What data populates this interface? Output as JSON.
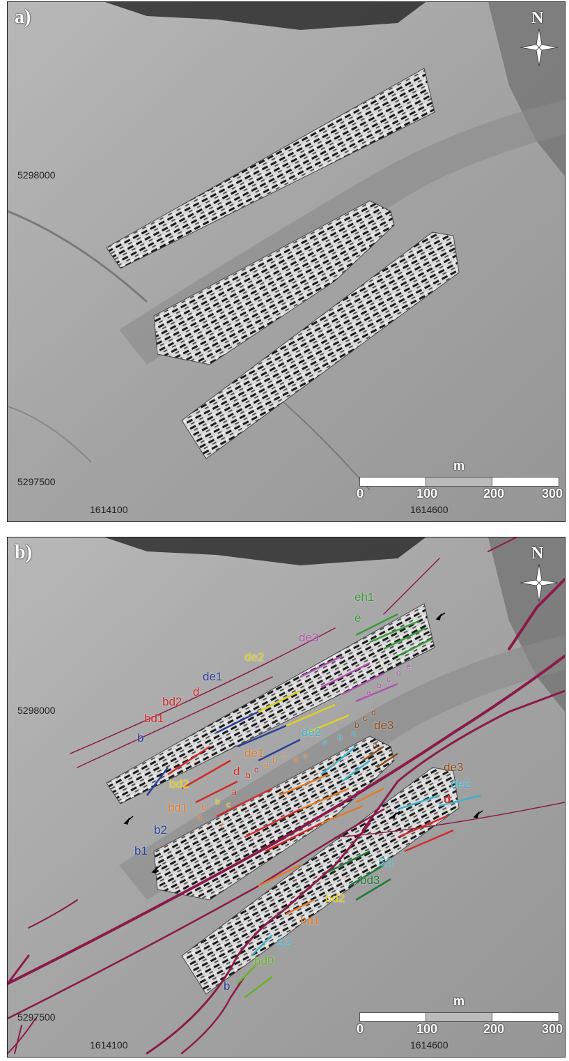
{
  "panels": {
    "a": {
      "label": "a)",
      "north_label": "N",
      "scale": {
        "unit": "m",
        "ticks": [
          "0",
          "100",
          "200",
          "300"
        ]
      },
      "coords": {
        "y_top": "5298000",
        "y_bottom": "5297500",
        "x_left": "1614100",
        "x_right": "1614600"
      }
    },
    "b": {
      "label": "b)",
      "north_label": "N",
      "scale": {
        "unit": "m",
        "ticks": [
          "0",
          "100",
          "200",
          "300"
        ]
      },
      "coords": {
        "y_top": "5298000",
        "y_bottom": "5297500",
        "x_left": "1614100",
        "x_right": "1614600"
      },
      "annotations": {
        "eh1": "eh1",
        "e_green": "e",
        "de3_purple": "de3",
        "a_purple": "a",
        "b_purple": "b",
        "c_purple": "c",
        "d_purple": "d",
        "e_purple": "e",
        "de2_yellow": "de2",
        "de1_blue": "de1",
        "bd2_red": "bd2",
        "d_red_top": "d",
        "bd1_red": "bd1",
        "b_blue_top": "b",
        "de1_orange": "de1",
        "de2_cyan": "de2",
        "a_cyan": "a",
        "b_cyan": "b",
        "c_cyan": "c",
        "de3_brown": "de3",
        "b_brown": "b",
        "c_brown": "c",
        "d_brown": "d",
        "a_brown": "a",
        "de3_brown_r": "de3",
        "de2_cyan_r": "de2",
        "d_red_r": "d",
        "d_red_mid": "d",
        "a_red_mid": "a",
        "b_red_mid": "b",
        "c_red_mid": "c",
        "a_orange_mid": "a",
        "b_orange_mid": "b",
        "c_orange_mid": "c",
        "d_orange_mid": "d",
        "e_orange_mid": "e",
        "f_orange_mid": "f",
        "bd2_yellow": "bd2",
        "b_yellow": "b",
        "c_yellow": "c",
        "bd1_orange": "bd1",
        "b_orange_l": "b",
        "a_orange_l": "a",
        "c_orange_l": "c",
        "b2_blue": "b2",
        "b1_blue": "b1",
        "S3_cyan": "S3",
        "bd3_green": "bd3",
        "bd2_yellow_low": "bd2",
        "bd1_orange_low": "bd1",
        "S2_cyan": "S2",
        "bd0_lime": "bd0",
        "b_blue_low": "b"
      }
    }
  },
  "colors": {
    "fault": "#8b1a4a",
    "green": "#3a9a3a",
    "purple": "#b050b0",
    "yellow": "#e0d020",
    "blue": "#2a3f9a",
    "red": "#d42a2a",
    "orange": "#e07a2a",
    "cyan": "#3fb0c8",
    "brown": "#8a4a1a",
    "darkgreen": "#1f7a3a",
    "lime": "#6ab02a"
  }
}
